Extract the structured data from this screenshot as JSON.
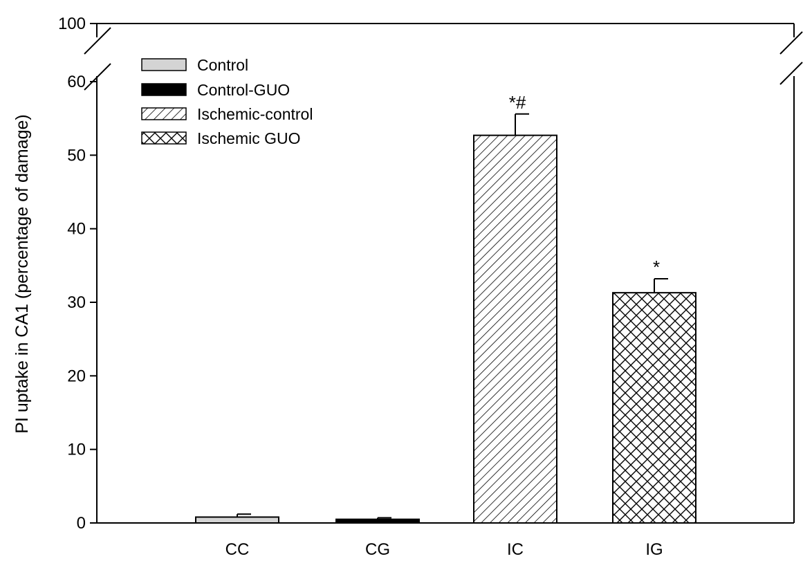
{
  "chart_data": {
    "type": "bar",
    "ylabel": "PI uptake in CA1 (percentage of damage)",
    "xlabel": "",
    "title": "",
    "categories": [
      "CC",
      "CG",
      "IC",
      "IG"
    ],
    "values": [
      0.8,
      0.5,
      52.7,
      31.3
    ],
    "errors": [
      0.4,
      0.2,
      2.9,
      1.9
    ],
    "significance": [
      "",
      "",
      "*#",
      "*"
    ],
    "series_names": [
      "Control",
      "Control-GUO",
      "Ischemic-control",
      "Ischemic GUO"
    ],
    "patterns": [
      "solid-light-gray",
      "solid-black",
      "diagonal-hatch",
      "cross-hatch"
    ],
    "colors": {
      "control": "#d4d4d4",
      "control_guo": "#000000",
      "hatch": "#000000",
      "fill_bg": "#ffffff"
    },
    "y_ticks": [
      0,
      10,
      20,
      30,
      40,
      50,
      60,
      100
    ],
    "y_tick_labels": [
      "0",
      "10",
      "20",
      "30",
      "40",
      "50",
      "60",
      "100"
    ],
    "ylim": [
      0,
      100
    ],
    "y_axis_break": [
      60,
      100
    ],
    "legend_position": "top-left",
    "grid": false
  }
}
